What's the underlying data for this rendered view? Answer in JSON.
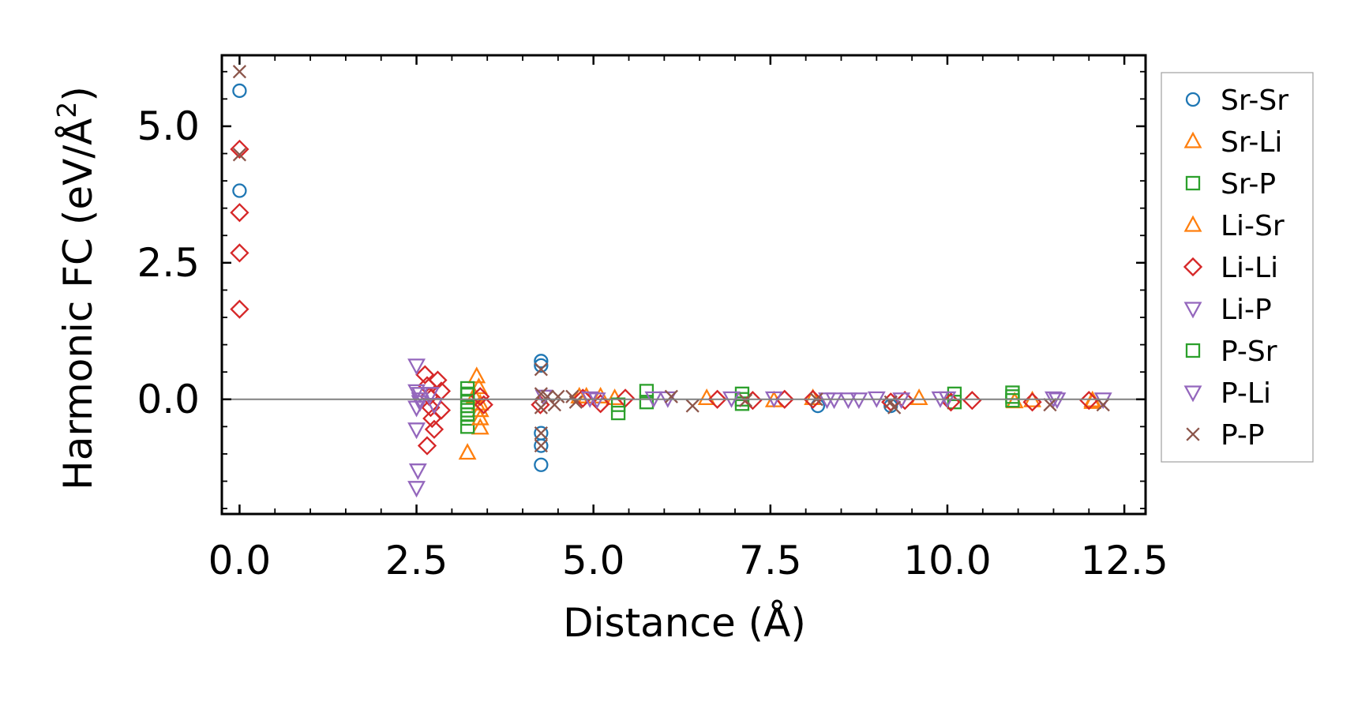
{
  "chart_data": {
    "type": "scatter",
    "xlabel": "Distance (Å)",
    "ylabel": "Harmonic FC (eV/Å²)",
    "ylabel_main": "Harmonic FC (eV/Å",
    "ylabel_sup": "2",
    "ylabel_close": ")",
    "xlim": [
      -0.25,
      12.8
    ],
    "ylim": [
      -2.1,
      6.3
    ],
    "xticks": [
      0.0,
      2.5,
      5.0,
      7.5,
      10.0,
      12.5
    ],
    "xtick_labels": [
      "0.0",
      "2.5",
      "5.0",
      "7.5",
      "10.0",
      "12.5"
    ],
    "yticks": [
      0.0,
      2.5,
      5.0
    ],
    "ytick_labels": [
      "0.0",
      "2.5",
      "5.0"
    ],
    "reference_line_y": 0.0,
    "grid": false,
    "legend_placement": "outside-right",
    "series": [
      {
        "name": "Sr-Sr",
        "marker": "circle",
        "color": "#1f77b4",
        "points": [
          [
            0.0,
            5.65
          ],
          [
            0.0,
            3.82
          ],
          [
            4.26,
            0.7
          ],
          [
            4.26,
            0.62
          ],
          [
            4.26,
            -0.62
          ],
          [
            4.26,
            -0.85
          ],
          [
            4.26,
            -1.2
          ],
          [
            8.17,
            -0.12
          ],
          [
            9.2,
            -0.12
          ]
        ]
      },
      {
        "name": "Sr-Li",
        "marker": "triangle-up",
        "color": "#ff7f0e",
        "points": [
          [
            3.22,
            -0.98
          ],
          [
            3.35,
            0.42
          ],
          [
            3.38,
            0.22
          ],
          [
            3.4,
            -0.2
          ],
          [
            3.4,
            -0.52
          ],
          [
            3.32,
            0.05
          ],
          [
            4.8,
            0.05
          ],
          [
            5.3,
            0.02
          ],
          [
            7.55,
            -0.02
          ],
          [
            10.95,
            -0.04
          ],
          [
            12.05,
            -0.05
          ]
        ]
      },
      {
        "name": "Sr-P",
        "marker": "square",
        "color": "#2ca02c",
        "points": [
          [
            3.22,
            0.2
          ],
          [
            3.22,
            0.08
          ],
          [
            3.22,
            -0.05
          ],
          [
            3.22,
            -0.2
          ],
          [
            3.22,
            -0.35
          ],
          [
            3.22,
            -0.5
          ],
          [
            5.35,
            -0.25
          ],
          [
            5.75,
            0.15
          ],
          [
            5.75,
            -0.05
          ],
          [
            7.1,
            0.1
          ],
          [
            7.1,
            -0.08
          ],
          [
            10.1,
            0.1
          ],
          [
            10.1,
            -0.05
          ],
          [
            10.92,
            0.12
          ],
          [
            10.92,
            -0.02
          ]
        ]
      },
      {
        "name": "Li-Sr",
        "marker": "triangle-up",
        "color": "#ff7f0e",
        "points": [
          [
            3.4,
            -0.08
          ],
          [
            3.4,
            -0.35
          ],
          [
            4.9,
            0.05
          ],
          [
            5.1,
            0.05
          ],
          [
            6.6,
            0.02
          ],
          [
            8.1,
            0.02
          ],
          [
            9.6,
            0.02
          ],
          [
            11.2,
            -0.02
          ],
          [
            12.05,
            -0.02
          ]
        ]
      },
      {
        "name": "Li-Li",
        "marker": "diamond",
        "color": "#d62728",
        "points": [
          [
            0.0,
            4.58
          ],
          [
            0.0,
            3.42
          ],
          [
            0.0,
            2.68
          ],
          [
            0.0,
            1.65
          ],
          [
            2.62,
            0.45
          ],
          [
            2.65,
            0.25
          ],
          [
            2.68,
            0.05
          ],
          [
            2.7,
            -0.15
          ],
          [
            2.72,
            -0.35
          ],
          [
            2.65,
            -0.85
          ],
          [
            2.75,
            -0.55
          ],
          [
            2.8,
            0.35
          ],
          [
            2.85,
            0.15
          ],
          [
            2.85,
            -0.2
          ],
          [
            3.4,
            0.05
          ],
          [
            3.45,
            -0.1
          ],
          [
            4.25,
            -0.1
          ],
          [
            4.85,
            0.02
          ],
          [
            5.1,
            -0.08
          ],
          [
            5.45,
            0.02
          ],
          [
            6.75,
            0.0
          ],
          [
            7.25,
            -0.02
          ],
          [
            7.7,
            0.0
          ],
          [
            8.1,
            0.0
          ],
          [
            9.2,
            -0.05
          ],
          [
            9.4,
            -0.02
          ],
          [
            10.05,
            -0.05
          ],
          [
            10.35,
            -0.02
          ],
          [
            11.2,
            -0.05
          ],
          [
            12.0,
            -0.02
          ]
        ]
      },
      {
        "name": "Li-P",
        "marker": "triangle-down",
        "color": "#9467bd",
        "points": [
          [
            2.5,
            0.62
          ],
          [
            2.5,
            0.15
          ],
          [
            2.5,
            -0.15
          ],
          [
            2.5,
            -0.55
          ],
          [
            2.52,
            -1.3
          ],
          [
            2.5,
            -1.62
          ],
          [
            2.55,
            0.0
          ],
          [
            4.3,
            0.05
          ],
          [
            4.95,
            0.02
          ],
          [
            5.85,
            0.02
          ],
          [
            6.05,
            0.02
          ],
          [
            7.55,
            0.02
          ],
          [
            8.4,
            0.0
          ],
          [
            8.6,
            0.0
          ],
          [
            9.0,
            0.02
          ],
          [
            10.0,
            0.02
          ],
          [
            11.5,
            0.02
          ]
        ]
      },
      {
        "name": "P-Sr",
        "marker": "square",
        "color": "#2ca02c",
        "points": [
          [
            3.22,
            0.1
          ],
          [
            3.22,
            -0.12
          ],
          [
            3.22,
            -0.28
          ],
          [
            5.35,
            -0.1
          ],
          [
            7.1,
            0.0
          ],
          [
            10.92,
            0.05
          ]
        ]
      },
      {
        "name": "P-Li",
        "marker": "triangle-down",
        "color": "#9467bd",
        "points": [
          [
            2.55,
            0.1
          ],
          [
            2.55,
            -0.05
          ],
          [
            2.7,
            0.1
          ],
          [
            2.75,
            -0.1
          ],
          [
            5.05,
            0.0
          ],
          [
            6.95,
            0.02
          ],
          [
            8.3,
            0.0
          ],
          [
            8.75,
            0.0
          ],
          [
            9.35,
            0.0
          ],
          [
            9.9,
            0.02
          ],
          [
            11.55,
            0.0
          ],
          [
            12.2,
            0.0
          ]
        ]
      },
      {
        "name": "P-P",
        "marker": "x",
        "color": "#8c564b",
        "points": [
          [
            0.0,
            6.0
          ],
          [
            0.0,
            4.48
          ],
          [
            4.26,
            0.55
          ],
          [
            4.26,
            0.1
          ],
          [
            4.26,
            -0.15
          ],
          [
            4.26,
            -0.62
          ],
          [
            4.26,
            -0.85
          ],
          [
            4.35,
            0.05
          ],
          [
            4.45,
            -0.1
          ],
          [
            4.5,
            0.05
          ],
          [
            4.7,
            0.05
          ],
          [
            4.75,
            -0.05
          ],
          [
            6.1,
            0.05
          ],
          [
            6.4,
            -0.12
          ],
          [
            7.15,
            -0.02
          ],
          [
            8.15,
            0.0
          ],
          [
            9.2,
            -0.05
          ],
          [
            9.25,
            -0.15
          ],
          [
            11.45,
            -0.1
          ],
          [
            12.2,
            -0.1
          ]
        ]
      }
    ]
  }
}
